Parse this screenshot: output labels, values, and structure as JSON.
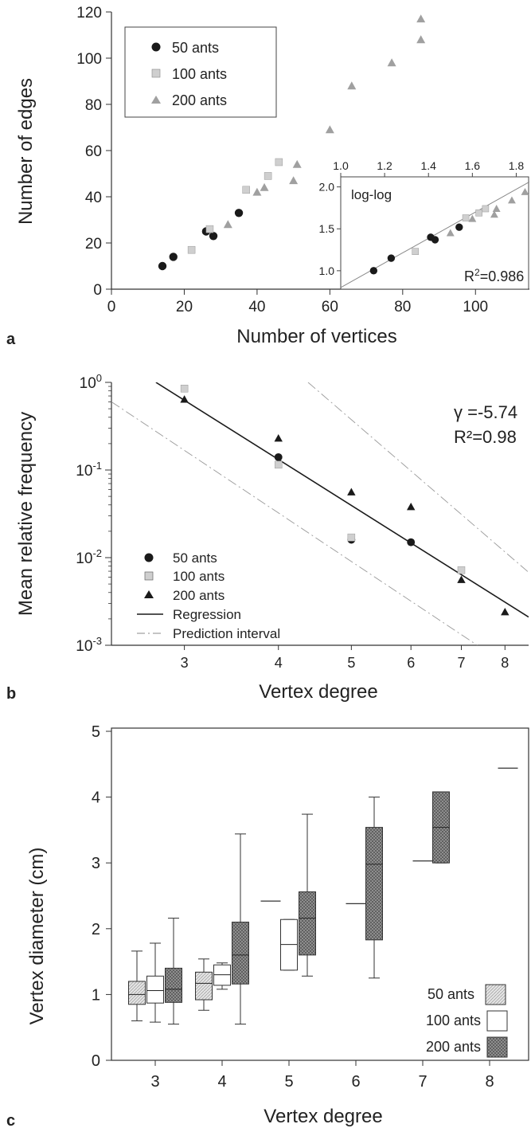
{
  "colors": {
    "black": "#1a1a1a",
    "light_gray": "#cfcfcf",
    "mid_gray": "#a0a0a0",
    "dark_hatch": "#7a7a7a",
    "white": "#ffffff"
  },
  "panels": {
    "a": "a",
    "b": "b",
    "c": "c"
  },
  "chart_data": [
    {
      "panel": "a",
      "type": "scatter",
      "xlabel": "Number of vertices",
      "ylabel": "Number of edges",
      "xlim": [
        0,
        117
      ],
      "ylim": [
        0,
        120
      ],
      "xticks": [
        0,
        20,
        40,
        60,
        80,
        100
      ],
      "yticks": [
        0,
        20,
        40,
        60,
        80,
        100,
        120
      ],
      "legend_position": "top-left",
      "series": [
        {
          "name": "50 ants",
          "marker": "circle",
          "color": "#1a1a1a",
          "points": [
            [
              14,
              10
            ],
            [
              17,
              14
            ],
            [
              26,
              25
            ],
            [
              28,
              23
            ],
            [
              35,
              33
            ]
          ]
        },
        {
          "name": "100 ants",
          "marker": "square",
          "color": "#cfcfcf",
          "points": [
            [
              22,
              17
            ],
            [
              27,
              26
            ],
            [
              37,
              43
            ],
            [
              43,
              49
            ],
            [
              46,
              55
            ]
          ]
        },
        {
          "name": "200 ants",
          "marker": "triangle",
          "color": "#a0a0a0",
          "points": [
            [
              32,
              28
            ],
            [
              40,
              42
            ],
            [
              42,
              44
            ],
            [
              50,
              47
            ],
            [
              51,
              54
            ],
            [
              60,
              69
            ],
            [
              66,
              88
            ],
            [
              77,
              98
            ],
            [
              85,
              108
            ],
            [
              85,
              117
            ]
          ]
        }
      ],
      "inset": {
        "title": "log-log",
        "annotation_prefix": "R",
        "annotation_sup": "2",
        "annotation_suffix": "=0.986",
        "xlim": [
          1.0,
          1.86
        ],
        "ylim": [
          0.78,
          2.12
        ],
        "xticks": [
          1.0,
          1.2,
          1.4,
          1.6,
          1.8
        ],
        "xtick_labels": [
          "1.0",
          "1.2",
          "1.4",
          "1.6",
          "1.8"
        ],
        "yticks": [
          1.0,
          1.5,
          2.0
        ],
        "ytick_labels": [
          "1.0",
          "1.5",
          "2.0"
        ],
        "fit_line": [
          [
            1.0,
            0.8
          ],
          [
            1.86,
            2.06
          ]
        ],
        "series": [
          {
            "name": "50 ants",
            "marker": "circle",
            "color": "#1a1a1a",
            "points": [
              [
                1.15,
                1.0
              ],
              [
                1.23,
                1.15
              ],
              [
                1.41,
                1.4
              ],
              [
                1.43,
                1.37
              ],
              [
                1.54,
                1.52
              ]
            ]
          },
          {
            "name": "100 ants",
            "marker": "square",
            "color": "#cfcfcf",
            "points": [
              [
                1.34,
                1.23
              ],
              [
                1.57,
                1.63
              ],
              [
                1.63,
                1.69
              ],
              [
                1.66,
                1.74
              ]
            ]
          },
          {
            "name": "200 ants",
            "marker": "triangle",
            "color": "#a0a0a0",
            "points": [
              [
                1.5,
                1.45
              ],
              [
                1.6,
                1.62
              ],
              [
                1.7,
                1.67
              ],
              [
                1.71,
                1.74
              ],
              [
                1.78,
                1.84
              ],
              [
                1.84,
                1.94
              ]
            ]
          }
        ]
      }
    },
    {
      "panel": "b",
      "type": "scatter",
      "xlabel": "Vertex degree",
      "ylabel": "Mean relative frequency",
      "x_scale": "log",
      "y_scale": "log",
      "xlim": [
        2.4,
        8.6
      ],
      "ylim": [
        0.001,
        1.0
      ],
      "xticks": [
        3,
        4,
        5,
        6,
        7,
        8
      ],
      "xtick_labels": [
        "3",
        "4",
        "5",
        "6",
        "7",
        "8"
      ],
      "ytick_labels": [
        {
          "base": "10",
          "exp": "0",
          "value": 1.0
        },
        {
          "base": "10",
          "exp": "-1",
          "value": 0.1
        },
        {
          "base": "10",
          "exp": "-2",
          "value": 0.01
        },
        {
          "base": "10",
          "exp": "-3",
          "value": 0.001
        }
      ],
      "annotations": [
        "γ =-5.74",
        "R²=0.98"
      ],
      "legend_position": "bottom-left",
      "legend": [
        {
          "name": "50 ants",
          "kind": "circle"
        },
        {
          "name": "100 ants",
          "kind": "square"
        },
        {
          "name": "200 ants",
          "kind": "triangle"
        },
        {
          "name": "Regression",
          "kind": "solid-line"
        },
        {
          "name": "Prediction interval",
          "kind": "dashed-line"
        }
      ],
      "series": [
        {
          "name": "50 ants",
          "marker": "circle",
          "color": "#1a1a1a",
          "points": [
            [
              4,
              0.14
            ],
            [
              5,
              0.016
            ],
            [
              6,
              0.015
            ]
          ]
        },
        {
          "name": "100 ants",
          "marker": "square",
          "color": "#cfcfcf",
          "points": [
            [
              3,
              0.85
            ],
            [
              4,
              0.115
            ],
            [
              5,
              0.017
            ],
            [
              7,
              0.0072
            ]
          ]
        },
        {
          "name": "200 ants",
          "marker": "triangle",
          "color": "#1a1a1a",
          "points": [
            [
              3,
              0.64
            ],
            [
              4,
              0.23
            ],
            [
              5,
              0.056
            ],
            [
              6,
              0.038
            ],
            [
              7,
              0.0056
            ],
            [
              8,
              0.0024
            ]
          ]
        }
      ],
      "regression": [
        [
          2.75,
          1.0
        ],
        [
          8.6,
          0.0021
        ]
      ],
      "prediction_upper": [
        [
          4.38,
          1.0
        ],
        [
          8.6,
          0.0068
        ]
      ],
      "prediction_lower": [
        [
          2.4,
          0.6
        ],
        [
          7.35,
          0.001
        ]
      ]
    },
    {
      "panel": "c",
      "type": "box",
      "xlabel": "Vertex degree",
      "ylabel": "Vertex diameter (cm)",
      "ylim": [
        0,
        5
      ],
      "yticks": [
        0,
        1,
        2,
        3,
        4,
        5
      ],
      "categories": [
        "3",
        "4",
        "5",
        "6",
        "7",
        "8"
      ],
      "legend_position": "bottom-right",
      "groups": [
        {
          "name": "50 ants",
          "fill": "#dedede",
          "hatch": "light"
        },
        {
          "name": "100 ants",
          "fill": "#ffffff",
          "hatch": "none"
        },
        {
          "name": "200 ants",
          "fill": "#8a8a8a",
          "hatch": "dark"
        }
      ],
      "boxes": [
        {
          "category": "3",
          "group": "50 ants",
          "min": 0.6,
          "q1": 0.85,
          "median": 1.0,
          "q3": 1.2,
          "max": 1.66
        },
        {
          "category": "3",
          "group": "100 ants",
          "min": 0.58,
          "q1": 0.87,
          "median": 1.06,
          "q3": 1.28,
          "max": 1.78
        },
        {
          "category": "3",
          "group": "200 ants",
          "min": 0.55,
          "q1": 0.88,
          "median": 1.08,
          "q3": 1.4,
          "max": 2.16
        },
        {
          "category": "4",
          "group": "50 ants",
          "min": 0.76,
          "q1": 0.92,
          "median": 1.17,
          "q3": 1.34,
          "max": 1.54
        },
        {
          "category": "4",
          "group": "100 ants",
          "min": 1.08,
          "q1": 1.14,
          "median": 1.3,
          "q3": 1.45,
          "max": 1.48
        },
        {
          "category": "4",
          "group": "200 ants",
          "min": 0.55,
          "q1": 1.16,
          "median": 1.6,
          "q3": 2.1,
          "max": 3.44
        },
        {
          "category": "5",
          "group": "50 ants",
          "single": 2.42
        },
        {
          "category": "5",
          "group": "100 ants",
          "min": 1.37,
          "q1": 1.37,
          "median": 1.76,
          "q3": 2.14,
          "max": 2.14
        },
        {
          "category": "5",
          "group": "200 ants",
          "min": 1.28,
          "q1": 1.6,
          "median": 2.16,
          "q3": 2.56,
          "max": 3.74
        },
        {
          "category": "6",
          "group": "100 ants",
          "single": 2.38
        },
        {
          "category": "6",
          "group": "200 ants",
          "min": 1.25,
          "q1": 1.83,
          "median": 2.98,
          "q3": 3.54,
          "max": 4.0
        },
        {
          "category": "7",
          "group": "100 ants",
          "single": 3.03
        },
        {
          "category": "7",
          "group": "200 ants",
          "min": 3.0,
          "q1": 3.0,
          "median": 3.54,
          "q3": 4.08,
          "max": 4.08
        },
        {
          "category": "8",
          "group": "200 ants",
          "single": 4.44
        }
      ]
    }
  ]
}
